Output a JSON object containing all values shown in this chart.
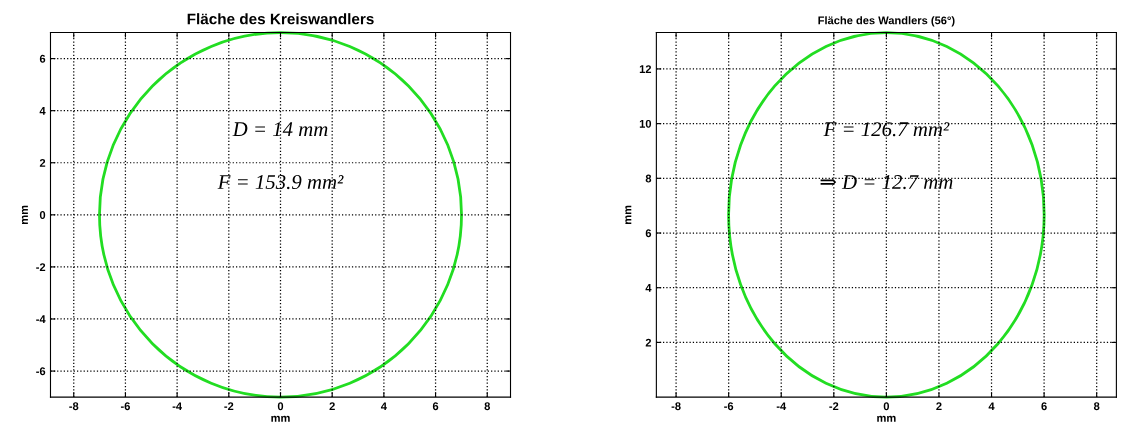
{
  "chart_data": [
    {
      "type": "line",
      "title": "Fläche des Kreiswandlers",
      "xlabel": "mm",
      "ylabel": "mm",
      "xlim": [
        -8.9,
        8.9
      ],
      "ylim": [
        -7,
        7
      ],
      "xticks": [
        -8,
        -6,
        -4,
        -2,
        0,
        2,
        4,
        6,
        8
      ],
      "yticks": [
        -6,
        -4,
        -2,
        0,
        2,
        4,
        6
      ],
      "grid": true,
      "annotations": [
        "D = 14 mm",
        "F = 153.9 mm²"
      ]
    },
    {
      "type": "line",
      "title": "Fläche des Wandlers (56°)",
      "xlabel": "mm",
      "ylabel": "mm",
      "xlim": [
        -8.75,
        8.75
      ],
      "ylim": [
        0,
        13.33
      ],
      "xticks": [
        -8,
        -6,
        -4,
        -2,
        0,
        2,
        4,
        6,
        8
      ],
      "yticks": [
        2,
        4,
        6,
        8,
        10,
        12
      ],
      "grid": true,
      "annotations": [
        "F = 126.7 mm²",
        "⇒ D = 12.7 mm"
      ]
    }
  ]
}
